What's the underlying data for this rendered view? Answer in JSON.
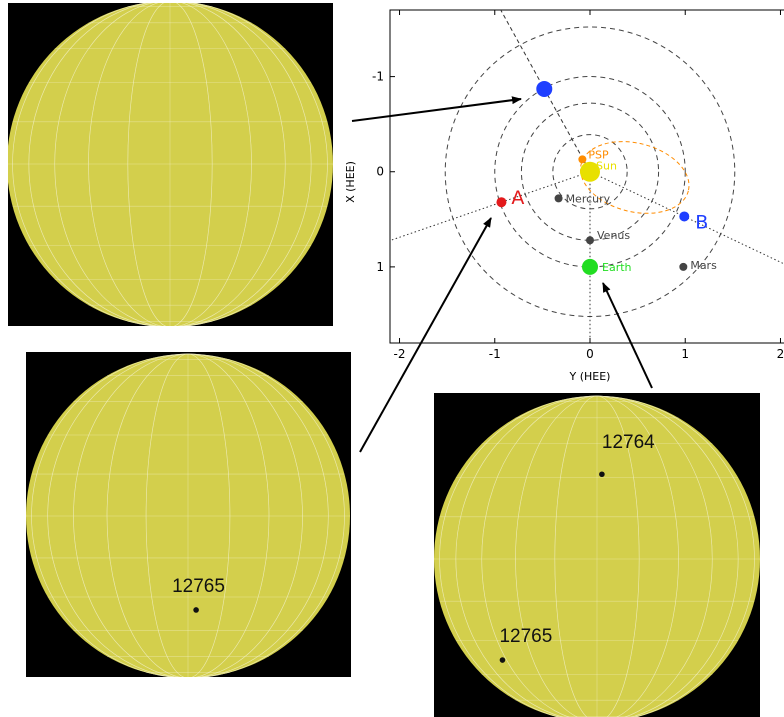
{
  "panels": [
    {
      "id": "top-left",
      "regions": []
    },
    {
      "id": "bottom-left",
      "regions": [
        {
          "label": "12765",
          "lon": 0.05,
          "lat": 0.58
        }
      ]
    },
    {
      "id": "bottom-right",
      "regions": [
        {
          "label": "12764",
          "lon": 0.03,
          "lat": -0.52
        },
        {
          "label": "12765",
          "lon": -0.58,
          "lat": 0.62
        }
      ]
    }
  ],
  "colors": {
    "sun_disk": "#d3cf4c",
    "grid": "#f2f0c8",
    "background": "#000000",
    "sun_marker": "#e8e000",
    "psp": "#ff8c00",
    "stereo_a": "#e31a1c",
    "stereo_b": "#1f3fff",
    "earth": "#22dd22",
    "planet": "#444444",
    "orbit": "#444444"
  },
  "chart_data": {
    "type": "scatter",
    "xlabel": "Y (HEE)",
    "ylabel": "X (HEE)",
    "xlim": [
      -2.1,
      2.1
    ],
    "ylim": [
      1.8,
      -1.7
    ],
    "xticks": [
      "-2",
      "-1",
      "0",
      "1",
      "2"
    ],
    "yticks": [
      "-1",
      "0",
      "1"
    ],
    "orbit_radii": [
      0.39,
      0.72,
      1.0,
      1.52
    ],
    "bodies": [
      {
        "name": "Sun",
        "label": "Sun",
        "y": 0.0,
        "x": 0.0,
        "color": "#e8e000"
      },
      {
        "name": "PSP",
        "label": "PSP",
        "y": -0.08,
        "x": -0.13,
        "color": "#ff8c00"
      },
      {
        "name": "Mercury",
        "label": "Mercury",
        "y": -0.33,
        "x": 0.28,
        "color": "#444444"
      },
      {
        "name": "Venus",
        "label": "Venus",
        "y": 0.0,
        "x": 0.72,
        "color": "#444444"
      },
      {
        "name": "Earth",
        "label": "Earth",
        "y": 0.0,
        "x": 1.0,
        "color": "#22dd22"
      },
      {
        "name": "Mars",
        "label": "Mars",
        "y": 0.98,
        "x": 1.0,
        "color": "#444444"
      },
      {
        "name": "STEREO-A",
        "label": "A",
        "y": -0.93,
        "x": 0.32,
        "color": "#e31a1c"
      },
      {
        "name": "STEREO-B",
        "label": "B",
        "y": 0.99,
        "x": 0.47,
        "color": "#1f3fff"
      },
      {
        "name": "Unlabeled spacecraft",
        "label": "",
        "y": -0.48,
        "x": -0.87,
        "color": "#1f3fff"
      }
    ]
  }
}
